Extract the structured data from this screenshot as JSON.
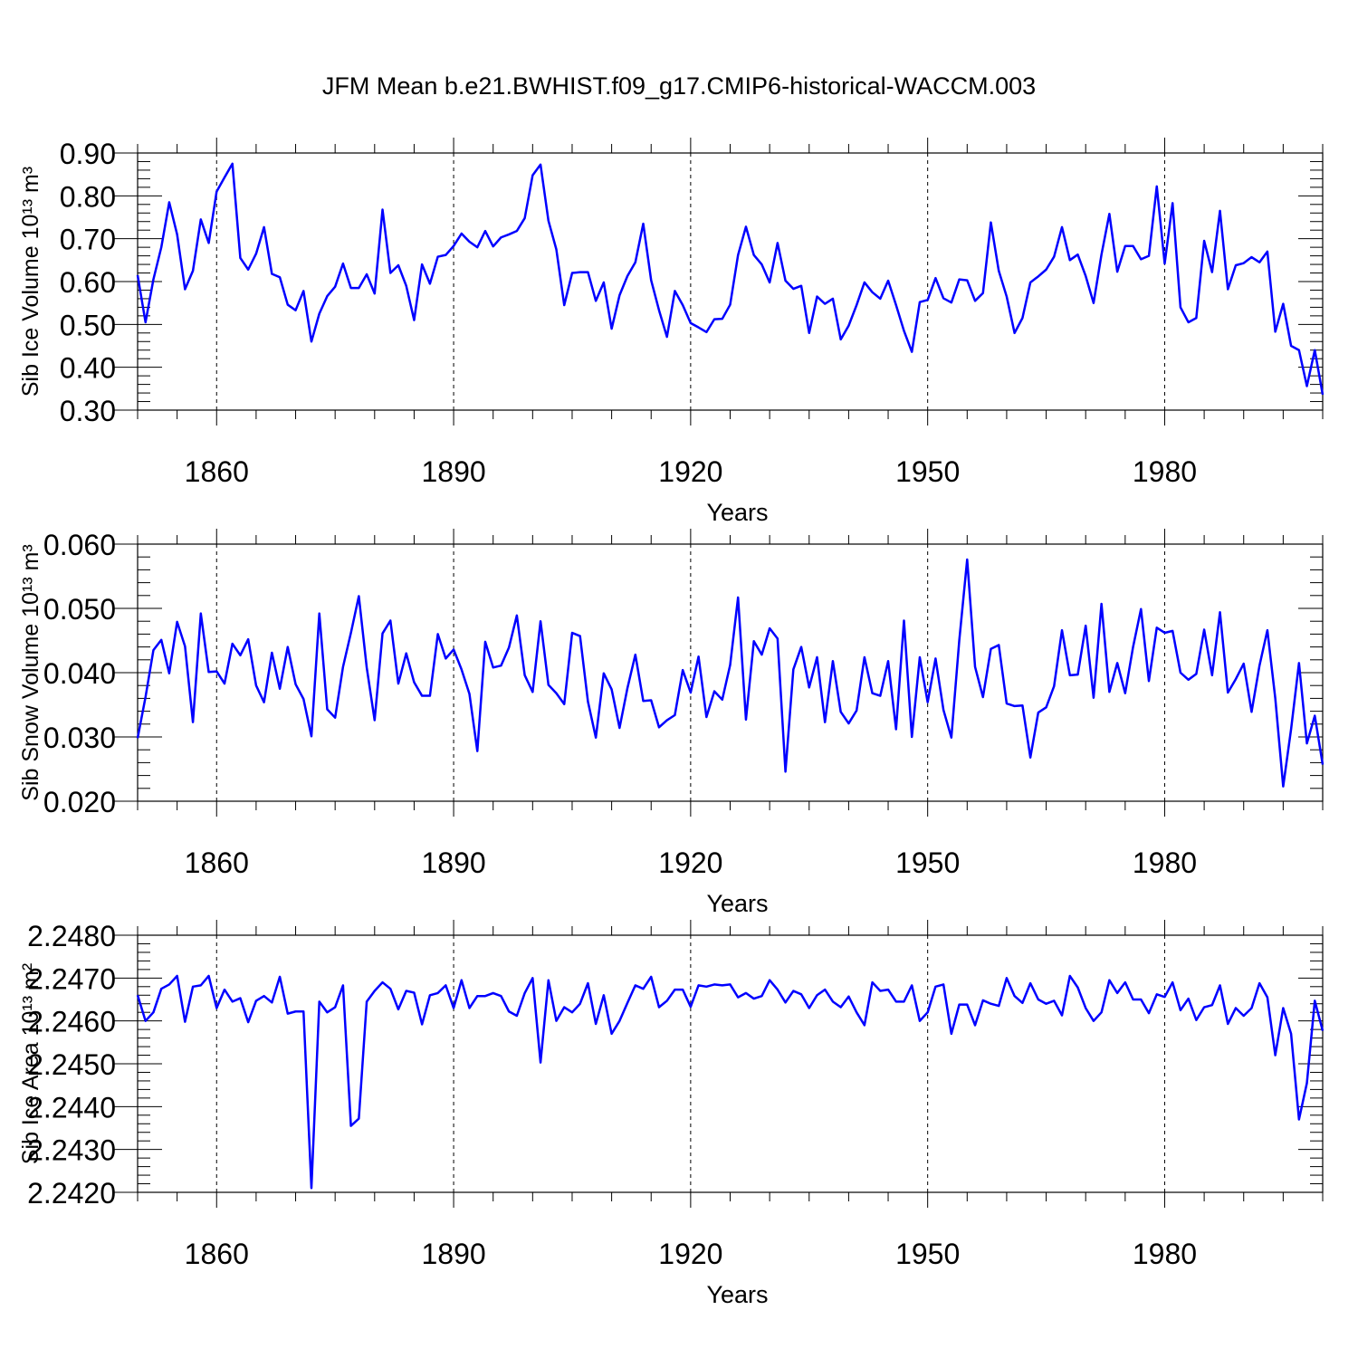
{
  "title": "JFM Mean b.e21.BWHIST.f09_g17.CMIP6-historical-WACCM.003",
  "line_color": "#0000ff",
  "chart_data": [
    {
      "type": "line",
      "ylabel": "Sib Ice Volume 10¹³ m³",
      "xlabel": "Years",
      "xlim": [
        1850,
        2000
      ],
      "ylim": [
        0.3,
        0.9
      ],
      "yticks": [
        0.3,
        0.4,
        0.5,
        0.6,
        0.7,
        0.8,
        0.9
      ],
      "yticklabels": [
        "0.30",
        "0.40",
        "0.50",
        "0.60",
        "0.70",
        "0.80",
        "0.90"
      ],
      "xticks": [
        1860,
        1890,
        1920,
        1950,
        1980
      ],
      "xticklabels": [
        "1860",
        "1890",
        "1920",
        "1950",
        "1980"
      ],
      "x_start": 1850,
      "values": [
        0.615,
        0.505,
        0.605,
        0.68,
        0.785,
        0.71,
        0.582,
        0.625,
        0.745,
        0.69,
        0.81,
        0.843,
        0.875,
        0.655,
        0.628,
        0.665,
        0.727,
        0.618,
        0.61,
        0.546,
        0.533,
        0.578,
        0.46,
        0.525,
        0.566,
        0.588,
        0.642,
        0.585,
        0.585,
        0.617,
        0.572,
        0.768,
        0.62,
        0.638,
        0.59,
        0.51,
        0.64,
        0.595,
        0.658,
        0.662,
        0.683,
        0.712,
        0.693,
        0.68,
        0.718,
        0.682,
        0.703,
        0.71,
        0.718,
        0.748,
        0.848,
        0.873,
        0.742,
        0.675,
        0.545,
        0.62,
        0.622,
        0.622,
        0.555,
        0.598,
        0.49,
        0.568,
        0.613,
        0.645,
        0.735,
        0.603,
        0.533,
        0.471,
        0.578,
        0.545,
        0.503,
        0.493,
        0.482,
        0.512,
        0.513,
        0.546,
        0.662,
        0.728,
        0.662,
        0.64,
        0.598,
        0.69,
        0.602,
        0.583,
        0.59,
        0.48,
        0.565,
        0.548,
        0.56,
        0.465,
        0.497,
        0.545,
        0.598,
        0.575,
        0.56,
        0.602,
        0.545,
        0.485,
        0.436,
        0.552,
        0.557,
        0.608,
        0.561,
        0.551,
        0.605,
        0.603,
        0.555,
        0.573,
        0.738,
        0.625,
        0.565,
        0.48,
        0.515,
        0.598,
        0.612,
        0.628,
        0.658,
        0.727,
        0.65,
        0.663,
        0.613,
        0.55,
        0.663,
        0.758,
        0.623,
        0.683,
        0.683,
        0.652,
        0.66,
        0.822,
        0.642,
        0.783,
        0.54,
        0.505,
        0.515,
        0.695,
        0.622,
        0.765,
        0.582,
        0.638,
        0.643,
        0.657,
        0.645,
        0.67,
        0.483,
        0.548,
        0.45,
        0.44,
        0.356,
        0.44,
        0.336
      ]
    },
    {
      "type": "line",
      "ylabel": "Sib Snow Volume 10¹³ m³",
      "xlabel": "Years",
      "xlim": [
        1850,
        2000
      ],
      "ylim": [
        0.02,
        0.06
      ],
      "yticks": [
        0.02,
        0.03,
        0.04,
        0.05,
        0.06
      ],
      "yticklabels": [
        "0.020",
        "0.030",
        "0.040",
        "0.050",
        "0.060"
      ],
      "xticks": [
        1860,
        1890,
        1920,
        1950,
        1980
      ],
      "xticklabels": [
        "1860",
        "1890",
        "1920",
        "1950",
        "1980"
      ],
      "x_start": 1850,
      "values": [
        0.0298,
        0.0362,
        0.0435,
        0.0451,
        0.0399,
        0.0479,
        0.0441,
        0.0323,
        0.0492,
        0.0401,
        0.0402,
        0.0383,
        0.0445,
        0.0427,
        0.0452,
        0.038,
        0.0354,
        0.0431,
        0.0375,
        0.044,
        0.0382,
        0.0359,
        0.0301,
        0.0492,
        0.0343,
        0.033,
        0.0409,
        0.0462,
        0.0519,
        0.0408,
        0.0326,
        0.0461,
        0.0481,
        0.0383,
        0.043,
        0.0385,
        0.0364,
        0.0364,
        0.046,
        0.0422,
        0.0436,
        0.0405,
        0.0367,
        0.0278,
        0.0448,
        0.0408,
        0.0411,
        0.0439,
        0.0489,
        0.0396,
        0.037,
        0.048,
        0.0381,
        0.0368,
        0.0351,
        0.0462,
        0.0457,
        0.0355,
        0.0299,
        0.0399,
        0.0374,
        0.0314,
        0.0376,
        0.0428,
        0.0356,
        0.0357,
        0.0315,
        0.0326,
        0.0334,
        0.0404,
        0.0369,
        0.0425,
        0.0331,
        0.0371,
        0.0358,
        0.0412,
        0.0517,
        0.0327,
        0.0449,
        0.0428,
        0.0469,
        0.0453,
        0.0246,
        0.0405,
        0.044,
        0.0377,
        0.0424,
        0.0323,
        0.0418,
        0.0339,
        0.0321,
        0.0341,
        0.0424,
        0.0368,
        0.0364,
        0.0418,
        0.0312,
        0.0481,
        0.03,
        0.0424,
        0.0354,
        0.0422,
        0.0342,
        0.0299,
        0.045,
        0.0576,
        0.0409,
        0.0362,
        0.0437,
        0.0443,
        0.0352,
        0.0348,
        0.0349,
        0.0268,
        0.0338,
        0.0346,
        0.0379,
        0.0466,
        0.0396,
        0.0397,
        0.0473,
        0.0361,
        0.0507,
        0.037,
        0.0415,
        0.0368,
        0.044,
        0.0499,
        0.0387,
        0.047,
        0.0462,
        0.0465,
        0.04,
        0.0389,
        0.0398,
        0.0467,
        0.0396,
        0.0494,
        0.0369,
        0.039,
        0.0414,
        0.0339,
        0.0411,
        0.0466,
        0.036,
        0.0223,
        0.0312,
        0.0415,
        0.029,
        0.0333,
        0.0257
      ]
    },
    {
      "type": "line",
      "ylabel": "Sib Ice Area 10¹³ m²",
      "xlabel": "Years",
      "xlim": [
        1850,
        2000
      ],
      "ylim": [
        2.242,
        2.248
      ],
      "yticks": [
        2.242,
        2.243,
        2.244,
        2.245,
        2.246,
        2.247,
        2.248
      ],
      "yticklabels": [
        "2.2420",
        "2.2430",
        "2.2440",
        "2.2450",
        "2.2460",
        "2.2470",
        "2.2480"
      ],
      "xticks": [
        1860,
        1890,
        1920,
        1950,
        1980
      ],
      "xticklabels": [
        "1860",
        "1890",
        "1920",
        "1950",
        "1980"
      ],
      "x_start": 1850,
      "values": [
        2.2466,
        2.246,
        2.2462,
        2.24675,
        2.24685,
        2.24705,
        2.24598,
        2.2468,
        2.24683,
        2.24705,
        2.2463,
        2.24673,
        2.24645,
        2.24653,
        2.24597,
        2.24647,
        2.24658,
        2.24643,
        2.24703,
        2.24617,
        2.24622,
        2.24622,
        2.2421,
        2.24645,
        2.2462,
        2.24632,
        2.24683,
        2.24355,
        2.24372,
        2.24645,
        2.2467,
        2.2469,
        2.24675,
        2.24627,
        2.2467,
        2.24666,
        2.24592,
        2.2466,
        2.24665,
        2.24683,
        2.2463,
        2.24695,
        2.2463,
        2.24658,
        2.24658,
        2.24665,
        2.24658,
        2.24622,
        2.24612,
        2.24665,
        2.247,
        2.24503,
        2.24695,
        2.246,
        2.24632,
        2.2462,
        2.2464,
        2.24688,
        2.24593,
        2.2466,
        2.2457,
        2.246,
        2.24642,
        2.24683,
        2.24675,
        2.24703,
        2.24632,
        2.24647,
        2.24673,
        2.24673,
        2.24633,
        2.24683,
        2.2468,
        2.24685,
        2.24683,
        2.24685,
        2.24655,
        2.24665,
        2.24652,
        2.24658,
        2.24695,
        2.24673,
        2.24643,
        2.2467,
        2.24662,
        2.2463,
        2.2466,
        2.24673,
        2.24645,
        2.24632,
        2.24657,
        2.2462,
        2.2459,
        2.2469,
        2.2467,
        2.24673,
        2.24645,
        2.24645,
        2.24683,
        2.246,
        2.2462,
        2.2468,
        2.24685,
        2.2457,
        2.24638,
        2.24638,
        2.2459,
        2.24648,
        2.2464,
        2.24635,
        2.247,
        2.24658,
        2.24642,
        2.24688,
        2.2465,
        2.2464,
        2.24647,
        2.24613,
        2.24705,
        2.24678,
        2.2463,
        2.246,
        2.2462,
        2.24695,
        2.24665,
        2.2469,
        2.2465,
        2.2465,
        2.24618,
        2.24662,
        2.24656,
        2.2469,
        2.24625,
        2.24652,
        2.24602,
        2.24632,
        2.24637,
        2.24683,
        2.24593,
        2.2463,
        2.24612,
        2.2463,
        2.24688,
        2.24655,
        2.2452,
        2.2463,
        2.2457,
        2.2437,
        2.24455,
        2.24647,
        2.24577
      ]
    }
  ]
}
